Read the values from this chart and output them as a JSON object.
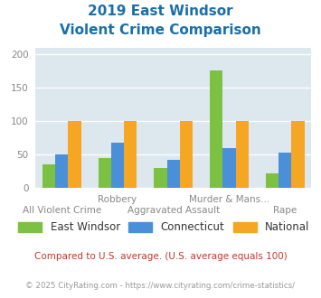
{
  "title_line1": "2019 East Windsor",
  "title_line2": "Violent Crime Comparison",
  "categories": [
    "All Violent Crime",
    "Robbery",
    "Aggravated Assault",
    "Murder & Mans...",
    "Rape"
  ],
  "series": {
    "East Windsor": [
      35,
      45,
      30,
      176,
      22
    ],
    "Connecticut": [
      50,
      68,
      42,
      60,
      52
    ],
    "National": [
      100,
      100,
      100,
      100,
      100
    ]
  },
  "colors": {
    "East Windsor": "#7dc142",
    "Connecticut": "#4a90d9",
    "National": "#f5a623"
  },
  "ylim": [
    0,
    210
  ],
  "yticks": [
    0,
    50,
    100,
    150,
    200
  ],
  "background_color": "#dde8ee",
  "title_color": "#1a6fa8",
  "footnote1": "Compared to U.S. average. (U.S. average equals 100)",
  "footnote2": "© 2025 CityRating.com - https://www.cityrating.com/crime-statistics/",
  "footnote1_color": "#c0392b",
  "footnote2_color": "#999999",
  "top_xlabels": [
    "",
    "Robbery",
    "",
    "Murder & Mans...",
    ""
  ],
  "bot_xlabels": [
    "All Violent Crime",
    "",
    "Aggravated Assault",
    "",
    "Rape"
  ]
}
